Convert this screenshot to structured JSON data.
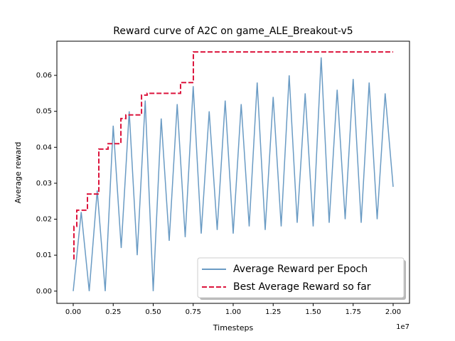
{
  "chart_data": {
    "type": "line",
    "title": "Reward curve of A2C on game_ALE_Breakout-v5",
    "x_label": "Timesteps",
    "y_label": "Average reward",
    "x_offset_label": "1e7",
    "xlim": [
      -1022000,
      21022000
    ],
    "ylim": [
      -0.0034,
      0.0695
    ],
    "xticks": [
      {
        "value": 0,
        "label": "0.00"
      },
      {
        "value": 2500000,
        "label": "0.25"
      },
      {
        "value": 5000000,
        "label": "0.50"
      },
      {
        "value": 7500000,
        "label": "0.75"
      },
      {
        "value": 10000000,
        "label": "1.00"
      },
      {
        "value": 12500000,
        "label": "1.25"
      },
      {
        "value": 15000000,
        "label": "1.50"
      },
      {
        "value": 17500000,
        "label": "1.75"
      },
      {
        "value": 20000000,
        "label": "2.00"
      }
    ],
    "yticks": [
      {
        "value": 0,
        "label": "0.00"
      },
      {
        "value": 0.01,
        "label": "0.01"
      },
      {
        "value": 0.02,
        "label": "0.02"
      },
      {
        "value": 0.03,
        "label": "0.03"
      },
      {
        "value": 0.04,
        "label": "0.04"
      },
      {
        "value": 0.05,
        "label": "0.05"
      },
      {
        "value": 0.06,
        "label": "0.06"
      }
    ],
    "legend_position": "lower right",
    "series": [
      {
        "name": "Average Reward per Epoch",
        "color": "#6a9bc4",
        "drawstyle": "default",
        "linestyle": "solid",
        "x": [
          0,
          500000,
          1000000,
          1500000,
          2000000,
          2500000,
          3000000,
          3500000,
          4000000,
          4500000,
          5000000,
          5500000,
          6000000,
          6500000,
          7000000,
          7500000,
          8000000,
          8500000,
          9000000,
          9500000,
          10000000,
          10500000,
          11000000,
          11500000,
          12000000,
          12500000,
          13000000,
          13500000,
          14000000,
          14500000,
          15000000,
          15500000,
          16000000,
          16500000,
          17000000,
          17500000,
          18000000,
          18500000,
          19000000,
          19500000,
          20000000
        ],
        "values": [
          0.0,
          0.022,
          0.0,
          0.028,
          0.0,
          0.046,
          0.012,
          0.05,
          0.01,
          0.053,
          0.0,
          0.048,
          0.014,
          0.052,
          0.015,
          0.057,
          0.016,
          0.05,
          0.017,
          0.053,
          0.016,
          0.052,
          0.018,
          0.058,
          0.017,
          0.054,
          0.018,
          0.06,
          0.019,
          0.055,
          0.018,
          0.065,
          0.019,
          0.056,
          0.02,
          0.059,
          0.019,
          0.058,
          0.02,
          0.055,
          0.029
        ]
      },
      {
        "name": "Best Average Reward so far",
        "color": "#dc143c",
        "drawstyle": "steps-post",
        "linestyle": "dashed",
        "x": [
          0,
          44000,
          222000,
          889000,
          1600000,
          2180000,
          2980000,
          3290000,
          4270000,
          4620000,
          6710000,
          7510000,
          20000000
        ],
        "values": [
          0.009,
          0.018,
          0.0225,
          0.027,
          0.0395,
          0.041,
          0.048,
          0.049,
          0.0545,
          0.055,
          0.058,
          0.0665,
          0.0665
        ]
      }
    ]
  }
}
